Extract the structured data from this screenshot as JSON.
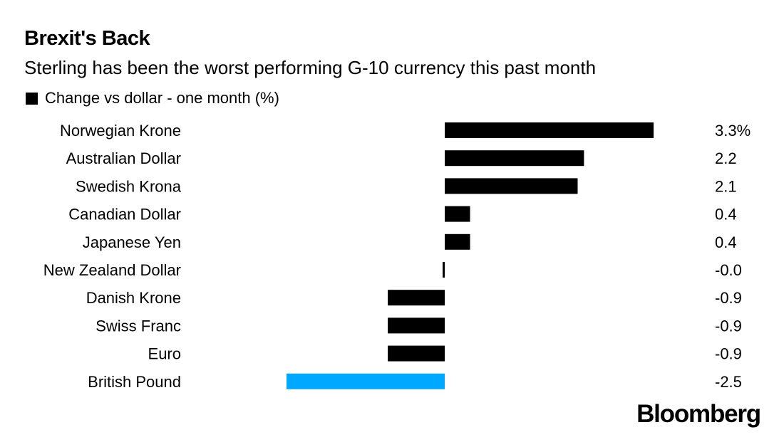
{
  "chart_data": {
    "type": "bar",
    "orientation": "horizontal",
    "title": "Brexit's Back",
    "subtitle": "Sterling has been the worst performing G-10 currency this past month",
    "legend": "Change vs dollar - one month (%)",
    "categories": [
      "Norwegian Krone",
      "Australian Dollar",
      "Swedish Krona",
      "Canadian Dollar",
      "Japanese Yen",
      "New Zealand Dollar",
      "Danish Krone",
      "Swiss Franc",
      "Euro",
      "British Pound"
    ],
    "values": [
      3.3,
      2.2,
      2.1,
      0.4,
      0.4,
      -0.02,
      -0.9,
      -0.9,
      -0.9,
      -2.5
    ],
    "value_labels": [
      "3.3%",
      "2.2",
      "2.1",
      "0.4",
      "0.4",
      "-0.0",
      "-0.9",
      "-0.9",
      "-0.9",
      "-2.5"
    ],
    "highlight_index": 9,
    "colors": {
      "default": "#000000",
      "highlight": "#00a8ff"
    },
    "xlim": [
      -2.5,
      3.3
    ],
    "grid": false,
    "legend_position": "top-left"
  },
  "brand": "Bloomberg"
}
